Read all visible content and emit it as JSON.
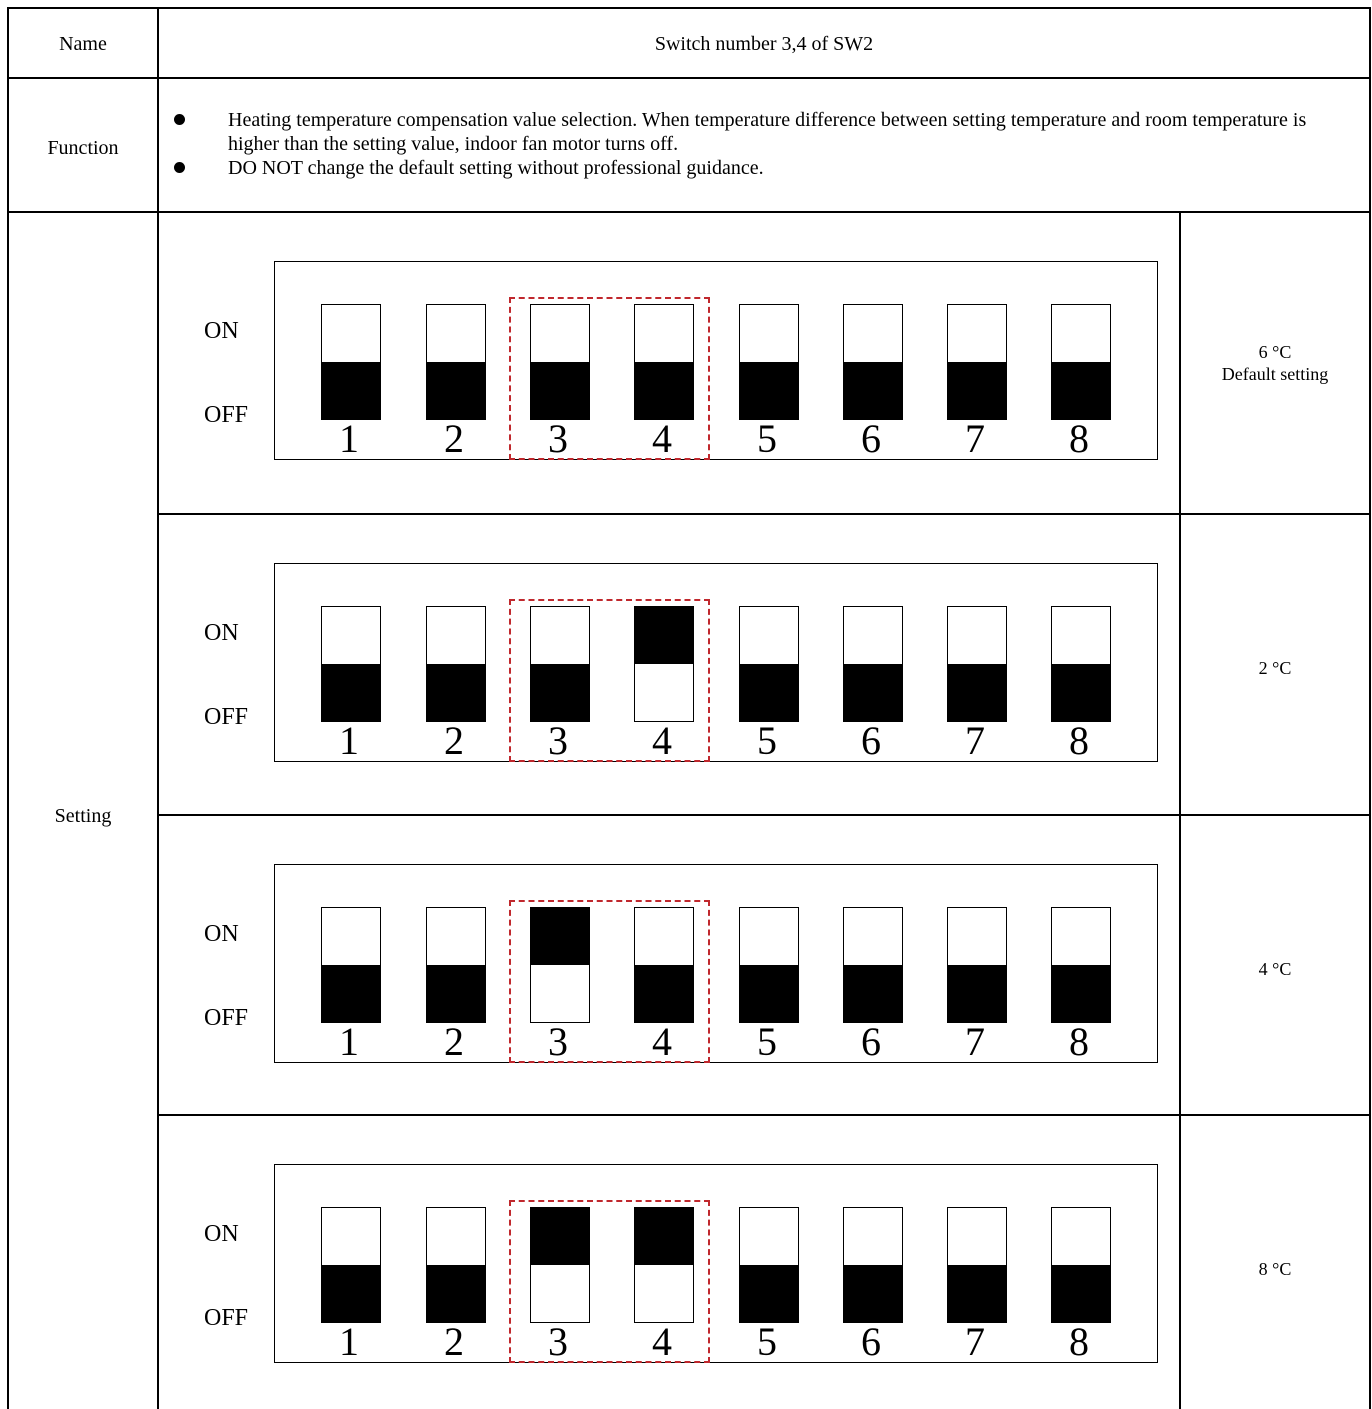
{
  "table": {
    "name_label": "Name",
    "name_value": "Switch number 3,4 of SW2",
    "function_label": "Function",
    "function_items": [
      "Heating temperature compensation value selection. When temperature difference between setting temperature and room temperature is higher than the setting value, indoor fan motor turns off.",
      "DO NOT change the default setting without professional guidance."
    ],
    "setting_label": "Setting"
  },
  "dip_labels": {
    "on": "ON",
    "off": "OFF",
    "numbers": [
      "1",
      "2",
      "3",
      "4",
      "5",
      "6",
      "7",
      "8"
    ]
  },
  "settings": [
    {
      "value": "6 °C",
      "note": "Default setting",
      "positions": [
        "OFF",
        "OFF",
        "OFF",
        "OFF",
        "OFF",
        "OFF",
        "OFF",
        "OFF"
      ]
    },
    {
      "value": "2 °C",
      "note": "",
      "positions": [
        "OFF",
        "OFF",
        "OFF",
        "ON",
        "OFF",
        "OFF",
        "OFF",
        "OFF"
      ]
    },
    {
      "value": "4 °C",
      "note": "",
      "positions": [
        "OFF",
        "OFF",
        "ON",
        "OFF",
        "OFF",
        "OFF",
        "OFF",
        "OFF"
      ]
    },
    {
      "value": "8 °C",
      "note": "",
      "positions": [
        "OFF",
        "OFF",
        "ON",
        "ON",
        "OFF",
        "OFF",
        "OFF",
        "OFF"
      ]
    }
  ],
  "colors": {
    "highlight": "#c0282d",
    "line": "#000000"
  }
}
